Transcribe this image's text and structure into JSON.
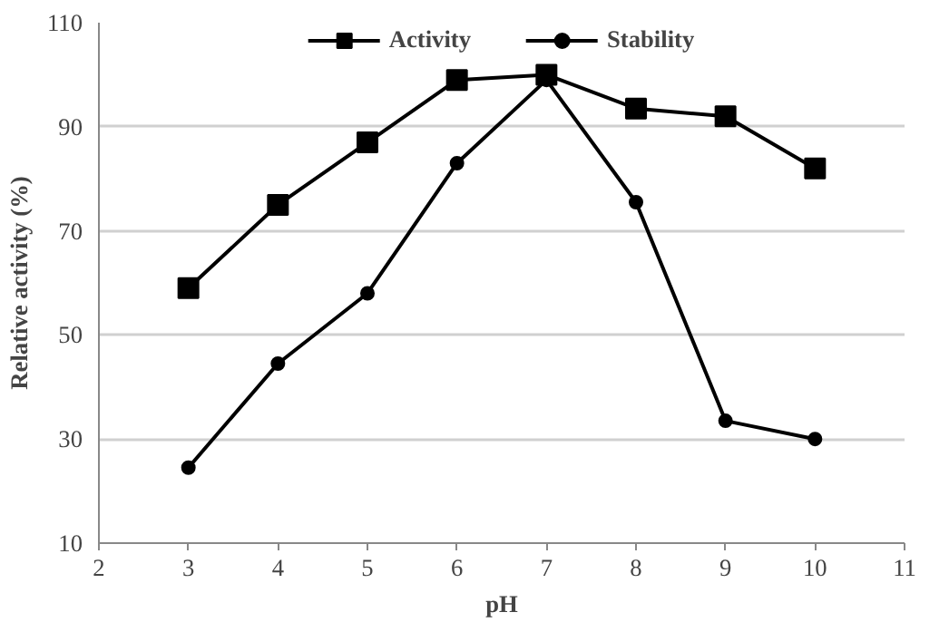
{
  "chart_data": {
    "type": "line",
    "xlabel": "pH",
    "ylabel": "Relative activity (%)",
    "x": [
      3,
      4,
      5,
      6,
      7,
      8,
      9,
      10
    ],
    "series": [
      {
        "name": "Activity",
        "color": "#000000",
        "marker": "square",
        "values": [
          59,
          75,
          87,
          99,
          100,
          93.5,
          92,
          82
        ]
      },
      {
        "name": "Stability",
        "color": "#000000",
        "marker": "circle",
        "values": [
          24.5,
          44.5,
          58,
          83,
          99,
          75.5,
          33.5,
          30
        ]
      }
    ],
    "xlim": [
      2,
      11
    ],
    "xticks": [
      2,
      3,
      4,
      5,
      6,
      7,
      8,
      9,
      10,
      11
    ],
    "ylim": [
      10,
      110
    ],
    "yticks": [
      10,
      30,
      50,
      70,
      90,
      110
    ],
    "grid": "y",
    "legend": "top",
    "line_style": "solid"
  }
}
